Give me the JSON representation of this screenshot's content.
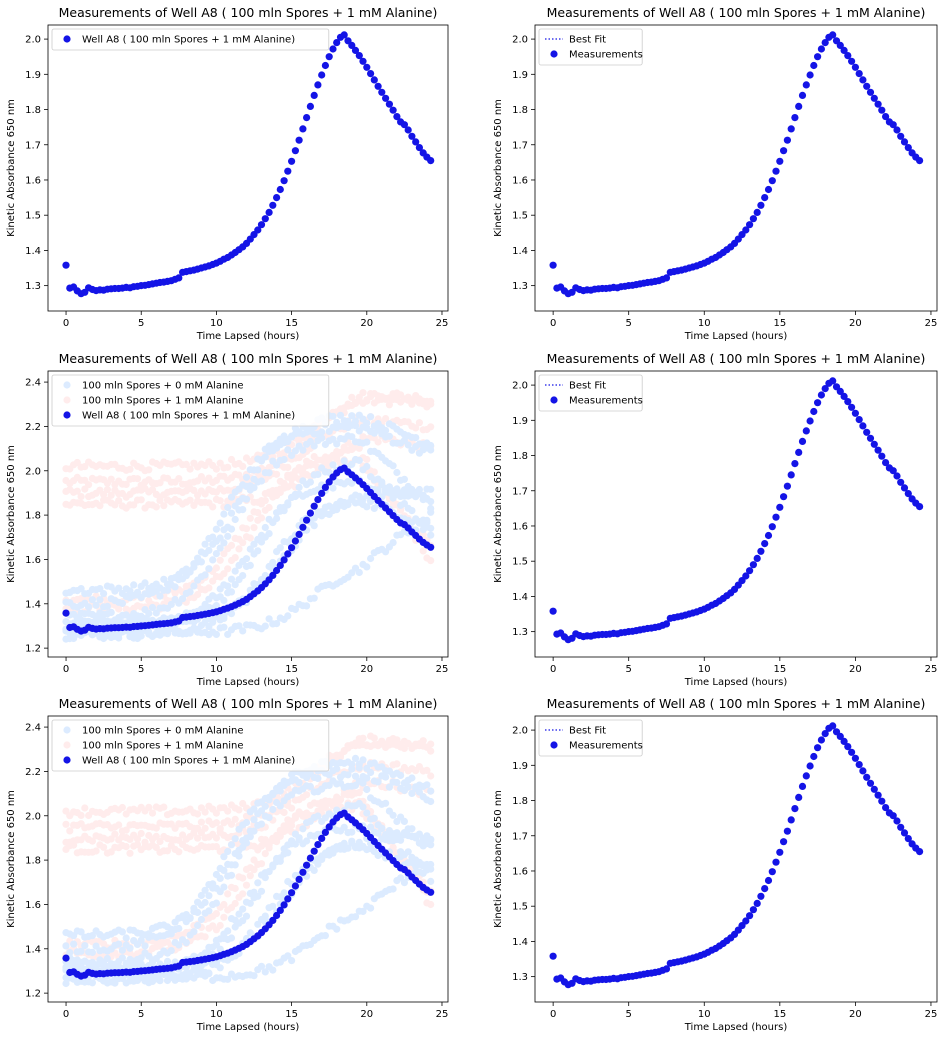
{
  "figure": {
    "background": "#ffffff",
    "point_color": "#1414e6",
    "neg_control_color": "#dcebff",
    "pos_control_color": "#ffecec",
    "fit_color": "#1414e6"
  },
  "chart_data": [
    {
      "id": "top-left",
      "type": "scatter",
      "title": "Measurements of Well  A8 ( 100  mln Spores +  1 mM Alanine)",
      "xlabel": "Time Lapsed (hours)",
      "ylabel": "Kinetic Absorbance 650 nm",
      "xlim": [
        -1.2,
        25.4
      ],
      "ylim": [
        1.228,
        2.04
      ],
      "xticks": [
        0,
        5,
        10,
        15,
        20,
        25
      ],
      "yticks": [
        1.3,
        1.4,
        1.5,
        1.6,
        1.7,
        1.8,
        1.9,
        2.0
      ],
      "yticklabels": [
        "1.3",
        "1.4",
        "1.5",
        "1.6",
        "1.7",
        "1.8",
        "1.9",
        "2.0"
      ],
      "grid": false,
      "legend": {
        "placement": "top-left",
        "entries": [
          {
            "label": "Well  A8 ( 100  mln Spores +  1 mM Alanine)",
            "kind": "marker",
            "color": "#1414e6"
          }
        ]
      },
      "series": [
        {
          "name": "Well  A8 ( 100  mln Spores +  1 mM Alanine)",
          "kind": "main"
        }
      ]
    },
    {
      "id": "top-right",
      "type": "scatter",
      "title": "Measurements of Well  A8 ( 100  mln Spores +  1 mM Alanine)",
      "xlabel": "Time Lapsed (hours)",
      "ylabel": "Kinetic Absorbance 650 nm",
      "xlim": [
        -1.2,
        25.4
      ],
      "ylim": [
        1.228,
        2.04
      ],
      "xticks": [
        0,
        5,
        10,
        15,
        20,
        25
      ],
      "yticks": [
        1.3,
        1.4,
        1.5,
        1.6,
        1.7,
        1.8,
        1.9,
        2.0
      ],
      "yticklabels": [
        "1.3",
        "1.4",
        "1.5",
        "1.6",
        "1.7",
        "1.8",
        "1.9",
        "2.0"
      ],
      "grid": false,
      "legend": {
        "placement": "top-left",
        "entries": [
          {
            "label": "Best Fit",
            "kind": "dotted-line",
            "color": "#1414e6"
          },
          {
            "label": "Measurements",
            "kind": "marker",
            "color": "#1414e6"
          }
        ]
      },
      "series": [
        {
          "name": "Measurements",
          "kind": "main"
        }
      ]
    },
    {
      "id": "middle-left",
      "type": "scatter",
      "title": "Measurements of Well  A8 ( 100  mln Spores +  1 mM Alanine)",
      "xlabel": "Time Lapsed (hours)",
      "ylabel": "Kinetic Absorbance 650 nm",
      "xlim": [
        -1.2,
        25.4
      ],
      "ylim": [
        1.16,
        2.45
      ],
      "xticks": [
        0,
        5,
        10,
        15,
        20,
        25
      ],
      "yticks": [
        1.2,
        1.4,
        1.6,
        1.8,
        2.0,
        2.2,
        2.4
      ],
      "yticklabels": [
        "1.2",
        "1.4",
        "1.6",
        "1.8",
        "2.0",
        "2.2",
        "2.4"
      ],
      "grid": false,
      "legend": {
        "placement": "top-left",
        "entries": [
          {
            "label": "100  mln Spores + 0 mM Alanine",
            "kind": "marker",
            "color": "#dcebff"
          },
          {
            "label": "100  mln Spores +  1 mM Alanine",
            "kind": "marker",
            "color": "#ffecec"
          },
          {
            "label": "Well  A8 ( 100  mln Spores +  1 mM Alanine)",
            "kind": "marker",
            "color": "#1414e6"
          }
        ]
      },
      "series": [
        {
          "name": "100  mln Spores + 0 mM Alanine",
          "kind": "neg"
        },
        {
          "name": "100  mln Spores +  1 mM Alanine",
          "kind": "pos"
        },
        {
          "name": "Well  A8 ( 100  mln Spores +  1 mM Alanine)",
          "kind": "main"
        }
      ]
    },
    {
      "id": "middle-right",
      "type": "scatter",
      "title": "Measurements of Well  A8 ( 100  mln Spores +  1 mM Alanine)",
      "xlabel": "Time Lapsed (hours)",
      "ylabel": "Kinetic Absorbance 650 nm",
      "xlim": [
        -1.2,
        25.4
      ],
      "ylim": [
        1.228,
        2.04
      ],
      "xticks": [
        0,
        5,
        10,
        15,
        20,
        25
      ],
      "yticks": [
        1.3,
        1.4,
        1.5,
        1.6,
        1.7,
        1.8,
        1.9,
        2.0
      ],
      "yticklabels": [
        "1.3",
        "1.4",
        "1.5",
        "1.6",
        "1.7",
        "1.8",
        "1.9",
        "2.0"
      ],
      "grid": false,
      "legend": {
        "placement": "top-left",
        "entries": [
          {
            "label": "Best Fit",
            "kind": "dotted-line",
            "color": "#1414e6"
          },
          {
            "label": "Measurements",
            "kind": "marker",
            "color": "#1414e6"
          }
        ]
      },
      "series": [
        {
          "name": "Measurements",
          "kind": "main"
        }
      ]
    },
    {
      "id": "bottom-left",
      "type": "scatter",
      "title": "Measurements of Well  A8 ( 100  mln Spores +  1 mM Alanine)",
      "xlabel": "Time Lapsed (hours)",
      "ylabel": "Kinetic Absorbance 650 nm",
      "xlim": [
        -1.2,
        25.4
      ],
      "ylim": [
        1.16,
        2.45
      ],
      "xticks": [
        0,
        5,
        10,
        15,
        20,
        25
      ],
      "yticks": [
        1.2,
        1.4,
        1.6,
        1.8,
        2.0,
        2.2,
        2.4
      ],
      "yticklabels": [
        "1.2",
        "1.4",
        "1.6",
        "1.8",
        "2.0",
        "2.2",
        "2.4"
      ],
      "grid": false,
      "legend": {
        "placement": "top-left",
        "entries": [
          {
            "label": "100  mln Spores + 0 mM Alanine",
            "kind": "marker",
            "color": "#dcebff"
          },
          {
            "label": "100  mln Spores +  1 mM Alanine",
            "kind": "marker",
            "color": "#ffecec"
          },
          {
            "label": "Well  A8 ( 100  mln Spores +  1 mM Alanine)",
            "kind": "marker",
            "color": "#1414e6"
          }
        ]
      },
      "series": [
        {
          "name": "100  mln Spores + 0 mM Alanine",
          "kind": "neg"
        },
        {
          "name": "100  mln Spores +  1 mM Alanine",
          "kind": "pos"
        },
        {
          "name": "Well  A8 ( 100  mln Spores +  1 mM Alanine)",
          "kind": "main"
        }
      ]
    },
    {
      "id": "bottom-right",
      "type": "scatter",
      "title": "Measurements of Well  A8 ( 100  mln Spores +  1 mM Alanine)",
      "xlabel": "Time Lapsed (hours)",
      "ylabel": "Kinetic Absorbance 650 nm",
      "xlim": [
        -1.2,
        25.4
      ],
      "ylim": [
        1.228,
        2.04
      ],
      "xticks": [
        0,
        5,
        10,
        15,
        20,
        25
      ],
      "yticks": [
        1.3,
        1.4,
        1.5,
        1.6,
        1.7,
        1.8,
        1.9,
        2.0
      ],
      "yticklabels": [
        "1.3",
        "1.4",
        "1.5",
        "1.6",
        "1.7",
        "1.8",
        "1.9",
        "2.0"
      ],
      "grid": false,
      "legend": {
        "placement": "top-left",
        "entries": [
          {
            "label": "Best Fit",
            "kind": "dotted-line",
            "color": "#1414e6"
          },
          {
            "label": "Measurements",
            "kind": "marker",
            "color": "#1414e6"
          }
        ]
      },
      "series": [
        {
          "name": "Measurements",
          "kind": "main"
        }
      ]
    }
  ],
  "measurements": {
    "x": [
      0.0,
      0.25,
      0.5,
      0.75,
      1.0,
      1.25,
      1.5,
      1.75,
      2.0,
      2.25,
      2.5,
      2.75,
      3.0,
      3.25,
      3.5,
      3.75,
      4.0,
      4.25,
      4.5,
      4.75,
      5.0,
      5.25,
      5.5,
      5.75,
      6.0,
      6.25,
      6.5,
      6.75,
      7.0,
      7.25,
      7.5,
      7.75,
      8.0,
      8.25,
      8.5,
      8.75,
      9.0,
      9.25,
      9.5,
      9.75,
      10.0,
      10.25,
      10.5,
      10.75,
      11.0,
      11.25,
      11.5,
      11.75,
      12.0,
      12.25,
      12.5,
      12.75,
      13.0,
      13.25,
      13.5,
      13.75,
      14.0,
      14.25,
      14.5,
      14.75,
      15.0,
      15.25,
      15.5,
      15.75,
      16.0,
      16.25,
      16.5,
      16.75,
      17.0,
      17.25,
      17.5,
      17.75,
      18.0,
      18.25,
      18.5,
      18.75,
      19.0,
      19.25,
      19.5,
      19.75,
      20.0,
      20.25,
      20.5,
      20.75,
      21.0,
      21.25,
      21.5,
      21.75,
      22.0,
      22.25,
      22.5,
      22.75,
      23.0,
      23.25,
      23.5,
      23.75,
      24.0,
      24.25
    ],
    "y": [
      1.358,
      1.293,
      1.296,
      1.285,
      1.277,
      1.281,
      1.294,
      1.289,
      1.286,
      1.288,
      1.287,
      1.29,
      1.291,
      1.292,
      1.292,
      1.293,
      1.295,
      1.294,
      1.297,
      1.298,
      1.3,
      1.301,
      1.303,
      1.305,
      1.307,
      1.309,
      1.31,
      1.312,
      1.314,
      1.318,
      1.322,
      1.338,
      1.34,
      1.342,
      1.344,
      1.347,
      1.35,
      1.353,
      1.356,
      1.36,
      1.364,
      1.369,
      1.375,
      1.38,
      1.387,
      1.394,
      1.402,
      1.41,
      1.42,
      1.432,
      1.445,
      1.458,
      1.473,
      1.49,
      1.508,
      1.528,
      1.55,
      1.573,
      1.598,
      1.625,
      1.653,
      1.683,
      1.713,
      1.745,
      1.777,
      1.809,
      1.84,
      1.87,
      1.898,
      1.925,
      1.95,
      1.972,
      1.99,
      2.005,
      2.012,
      1.995,
      1.982,
      1.968,
      1.953,
      1.937,
      1.92,
      1.902,
      1.884,
      1.866,
      1.849,
      1.832,
      1.815,
      1.798,
      1.78,
      1.765,
      1.757,
      1.742,
      1.724,
      1.708,
      1.692,
      1.677,
      1.665,
      1.655
    ]
  },
  "controls": {
    "negative": [
      {
        "y0": 1.29,
        "mid": 12.0,
        "top": 1.95,
        "end": 1.88
      },
      {
        "y0": 1.34,
        "mid": 11.0,
        "top": 2.15,
        "end": 1.85
      },
      {
        "y0": 1.26,
        "mid": 13.5,
        "top": 1.88,
        "end": 1.75
      },
      {
        "y0": 1.4,
        "mid": 10.5,
        "top": 2.2,
        "end": 2.08
      },
      {
        "y0": 1.32,
        "mid": 14.5,
        "top": 1.9,
        "end": 1.9
      },
      {
        "y0": 1.27,
        "mid": 16.5,
        "top": 1.6,
        "end": 1.8
      },
      {
        "y0": 1.46,
        "mid": 11.5,
        "top": 2.25,
        "end": 2.12
      },
      {
        "y0": 1.3,
        "mid": 13.0,
        "top": 2.05,
        "end": 1.72
      }
    ],
    "positive": [
      {
        "y0": 1.95,
        "mid": 16.0,
        "top": 2.35,
        "end": 2.3
      },
      {
        "y0": 1.9,
        "mid": 15.5,
        "top": 2.25,
        "end": 2.2
      },
      {
        "y0": 1.85,
        "mid": 17.0,
        "top": 2.2,
        "end": 2.1
      },
      {
        "y0": 2.02,
        "mid": 16.5,
        "top": 2.38,
        "end": 2.32
      },
      {
        "y0": 1.38,
        "mid": 12.5,
        "top": 2.1,
        "end": 1.6
      },
      {
        "y0": 1.42,
        "mid": 11.8,
        "top": 2.05,
        "end": 1.65
      }
    ]
  }
}
